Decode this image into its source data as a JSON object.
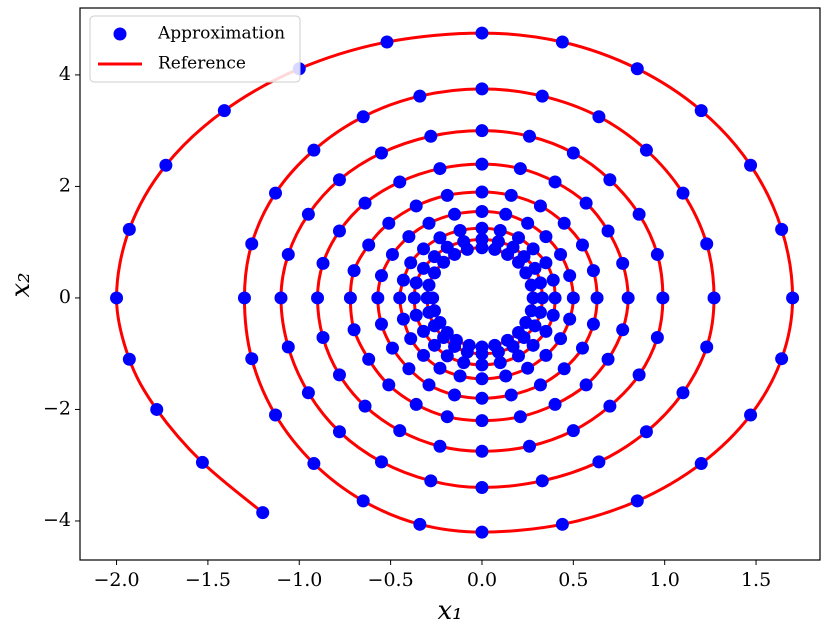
{
  "chart_data": {
    "type": "scatter",
    "x_label": "x₁",
    "y_label": "x₂",
    "xlim": [
      -2.2,
      1.85
    ],
    "ylim": [
      -4.7,
      5.2
    ],
    "xticks": [
      {
        "value": -2.0,
        "label": "−2.0"
      },
      {
        "value": -1.5,
        "label": "−1.5"
      },
      {
        "value": -1.0,
        "label": "−1.0"
      },
      {
        "value": -0.5,
        "label": "−0.5"
      },
      {
        "value": 0,
        "label": "0.0"
      },
      0.5,
      {
        "value": 1.0,
        "label": "1.0"
      },
      1.5
    ],
    "yticks": [
      {
        "value": -4,
        "label": "−4"
      },
      {
        "value": -2,
        "label": "−2"
      },
      0,
      2,
      4
    ],
    "grid": false,
    "legend": "upper left",
    "series": [
      {
        "name": "Approximation",
        "color": "#0000ff",
        "mode": "markers",
        "x": [
          -1.2,
          -1.53,
          -1.78,
          -1.93,
          -2.0,
          -1.93,
          -1.73,
          -1.41,
          -1.0,
          -0.52,
          0,
          0.44,
          0.85,
          1.2,
          1.47,
          1.64,
          1.7,
          1.64,
          1.47,
          1.2,
          0.85,
          0.44,
          0,
          -0.34,
          -0.65,
          -0.92,
          -1.13,
          -1.26,
          -1.3,
          -1.26,
          -1.13,
          -0.92,
          -0.65,
          -0.34,
          0,
          0.33,
          0.64,
          0.9,
          1.1,
          1.23,
          1.27,
          1.23,
          1.1,
          0.9,
          0.64,
          0.33,
          0,
          -0.28,
          -0.55,
          -0.78,
          -0.95,
          -1.06,
          -1.1,
          -1.06,
          -0.95,
          -0.78,
          -0.55,
          -0.28,
          0,
          0.26,
          0.5,
          0.7,
          0.86,
          0.96,
          0.99,
          0.96,
          0.86,
          0.7,
          0.5,
          0.26,
          0,
          -0.23,
          -0.45,
          -0.64,
          -0.78,
          -0.87,
          -0.9,
          -0.87,
          -0.78,
          -0.64,
          -0.45,
          -0.23,
          0,
          0.21,
          0.4,
          0.57,
          0.69,
          0.77,
          0.8,
          0.77,
          0.69,
          0.57,
          0.4,
          0.21,
          0,
          -0.19,
          -0.36,
          -0.51,
          -0.62,
          -0.7,
          -0.72,
          -0.7,
          -0.62,
          -0.51,
          -0.36,
          -0.19,
          0,
          0.16,
          0.32,
          0.45,
          0.55,
          0.61,
          0.63,
          0.61,
          0.55,
          0.45,
          0.32,
          0.16,
          0,
          -0.15,
          -0.29,
          -0.4,
          -0.49,
          -0.55,
          -0.57,
          -0.55,
          -0.49,
          -0.4,
          -0.29,
          -0.15,
          0,
          0.13,
          0.25,
          0.35,
          0.43,
          0.48,
          0.5,
          0.48,
          0.43,
          0.35,
          0.25,
          0.13,
          0,
          -0.12,
          -0.23,
          -0.32,
          -0.39,
          -0.43,
          -0.45,
          -0.43,
          -0.39,
          -0.32,
          -0.23,
          -0.12,
          0,
          0.1,
          0.2,
          0.28,
          0.35,
          0.39,
          0.4,
          0.39,
          0.35,
          0.28,
          0.2,
          0.1,
          0,
          -0.1,
          -0.19,
          -0.26,
          -0.32,
          -0.36,
          -0.37,
          -0.36,
          -0.32,
          -0.26,
          -0.19,
          -0.1,
          0,
          0.09,
          0.17,
          0.23,
          0.29,
          0.32,
          0.33,
          0.32,
          0.29,
          0.23,
          0.17,
          0.09,
          0,
          -0.08,
          -0.15,
          -0.21,
          -0.26,
          -0.29,
          -0.3,
          -0.29,
          -0.26,
          -0.21,
          -0.15,
          -0.08,
          0,
          0.07,
          0.14,
          0.2,
          0.24,
          0.27,
          0.28,
          0.27,
          0.24,
          0.2,
          0.14,
          0.07,
          0,
          -0.07,
          -0.14,
          -0.19,
          -0.23,
          -0.26,
          -0.27
        ],
        "y": [
          -3.85,
          -2.95,
          -2.0,
          -1.1,
          0,
          1.23,
          2.38,
          3.36,
          4.11,
          4.59,
          4.75,
          4.59,
          4.11,
          3.36,
          2.38,
          1.23,
          0,
          -1.09,
          -2.1,
          -2.97,
          -3.64,
          -4.06,
          -4.2,
          -4.06,
          -3.64,
          -2.97,
          -2.1,
          -1.09,
          0,
          0.97,
          1.88,
          2.65,
          3.25,
          3.62,
          3.75,
          3.62,
          3.25,
          2.65,
          1.88,
          0.97,
          0,
          -0.88,
          -1.7,
          -2.4,
          -2.94,
          -3.28,
          -3.4,
          -3.28,
          -2.94,
          -2.4,
          -1.7,
          -0.88,
          0,
          0.78,
          1.5,
          2.12,
          2.6,
          2.9,
          3,
          2.9,
          2.6,
          2.12,
          1.5,
          0.78,
          0,
          -0.71,
          -1.38,
          -1.94,
          -2.38,
          -2.66,
          -2.75,
          -2.66,
          -2.38,
          -1.94,
          -1.38,
          -0.71,
          0,
          0.62,
          1.2,
          1.7,
          2.08,
          2.32,
          2.4,
          2.32,
          2.08,
          1.7,
          1.2,
          0.62,
          0,
          -0.57,
          -1.1,
          -1.56,
          -1.91,
          -2.13,
          -2.2,
          -2.13,
          -1.91,
          -1.56,
          -1.1,
          -0.57,
          0,
          0.49,
          0.95,
          1.34,
          1.65,
          1.84,
          1.9,
          1.84,
          1.65,
          1.34,
          0.95,
          0.49,
          0,
          -0.47,
          -0.9,
          -1.27,
          -1.56,
          -1.74,
          -1.8,
          -1.74,
          -1.56,
          -1.27,
          -0.9,
          -0.47,
          0,
          0.4,
          0.78,
          1.1,
          1.34,
          1.5,
          1.55,
          1.5,
          1.34,
          1.1,
          0.78,
          0.4,
          0,
          -0.38,
          -0.73,
          -1.03,
          -1.26,
          -1.4,
          -1.45,
          -1.4,
          -1.26,
          -1.03,
          -0.73,
          -0.38,
          0,
          0.32,
          0.63,
          0.88,
          1.08,
          1.21,
          1.25,
          1.21,
          1.08,
          0.88,
          0.63,
          0.32,
          0,
          -0.31,
          -0.6,
          -0.85,
          -1.04,
          -1.16,
          -1.2,
          -1.16,
          -1.04,
          -0.85,
          -0.6,
          -0.31,
          0,
          0.27,
          0.53,
          0.74,
          0.91,
          1.01,
          1.05,
          1.01,
          0.91,
          0.74,
          0.53,
          0.27,
          0,
          -0.26,
          -0.5,
          -0.71,
          -0.87,
          -0.97,
          -1,
          -0.97,
          -0.87,
          -0.71,
          -0.5,
          -0.26,
          0,
          0.23,
          0.45,
          0.64,
          0.78,
          0.87,
          0.9,
          0.87,
          0.78,
          0.64,
          0.45,
          0.23,
          0,
          -0.23,
          -0.44,
          -0.62,
          -0.76,
          -0.85,
          -0.88,
          -0.85,
          -0.76,
          -0.62,
          -0.44,
          -0.23,
          0
        ]
      },
      {
        "name": "Reference",
        "color": "#ff0000",
        "mode": "lines",
        "x": [
          -1.2,
          -1.53,
          -1.78,
          -1.93,
          -2.0,
          -1.93,
          -1.73,
          -1.41,
          -1.0,
          -0.52,
          0,
          0.44,
          0.85,
          1.2,
          1.47,
          1.64,
          1.7,
          1.64,
          1.47,
          1.2,
          0.85,
          0.44,
          0,
          -0.34,
          -0.65,
          -0.92,
          -1.13,
          -1.26,
          -1.3,
          -1.26,
          -1.13,
          -0.92,
          -0.65,
          -0.34,
          0,
          0.33,
          0.64,
          0.9,
          1.1,
          1.23,
          1.27,
          1.23,
          1.1,
          0.9,
          0.64,
          0.33,
          0,
          -0.28,
          -0.55,
          -0.78,
          -0.95,
          -1.06,
          -1.1,
          -1.06,
          -0.95,
          -0.78,
          -0.55,
          -0.28,
          0,
          0.26,
          0.5,
          0.7,
          0.86,
          0.96,
          0.99,
          0.96,
          0.86,
          0.7,
          0.5,
          0.26,
          0,
          -0.23,
          -0.45,
          -0.64,
          -0.78,
          -0.87,
          -0.9,
          -0.87,
          -0.78,
          -0.64,
          -0.45,
          -0.23,
          0,
          0.21,
          0.4,
          0.57,
          0.69,
          0.77,
          0.8,
          0.77,
          0.69,
          0.57,
          0.4,
          0.21,
          0,
          -0.19,
          -0.36,
          -0.51,
          -0.62,
          -0.7,
          -0.72,
          -0.7,
          -0.62,
          -0.51,
          -0.36,
          -0.19,
          0,
          0.16,
          0.32,
          0.45,
          0.55,
          0.61,
          0.63,
          0.61,
          0.55,
          0.45,
          0.32,
          0.16,
          0,
          -0.15,
          -0.29,
          -0.4,
          -0.49,
          -0.55,
          -0.57,
          -0.55,
          -0.49,
          -0.4,
          -0.29,
          -0.15,
          0,
          0.13,
          0.25,
          0.35,
          0.43,
          0.48,
          0.5,
          0.48,
          0.43,
          0.35,
          0.25,
          0.13,
          0,
          -0.12,
          -0.23,
          -0.32,
          -0.39,
          -0.43,
          -0.45,
          -0.43,
          -0.39,
          -0.32,
          -0.23,
          -0.12,
          0,
          0.1,
          0.2,
          0.28,
          0.35,
          0.39,
          0.4,
          0.39,
          0.35,
          0.28,
          0.2,
          0.1,
          0,
          -0.1,
          -0.19,
          -0.26,
          -0.32,
          -0.36,
          -0.37,
          -0.36,
          -0.32,
          -0.26,
          -0.19,
          -0.1,
          0,
          0.09,
          0.17,
          0.23,
          0.29,
          0.32,
          0.33,
          0.32,
          0.29,
          0.23,
          0.17,
          0.09,
          0,
          -0.08,
          -0.15,
          -0.21,
          -0.26,
          -0.29,
          -0.3,
          -0.29,
          -0.26,
          -0.21,
          -0.15,
          -0.08,
          0,
          0.07,
          0.14,
          0.2,
          0.24,
          0.27,
          0.28,
          0.27,
          0.24,
          0.2,
          0.14,
          0.07,
          0,
          -0.07,
          -0.14,
          -0.19,
          -0.23,
          -0.26,
          -0.27
        ],
        "y": [
          -3.85,
          -2.95,
          -2.0,
          -1.1,
          0,
          1.23,
          2.38,
          3.36,
          4.11,
          4.59,
          4.75,
          4.59,
          4.11,
          3.36,
          2.38,
          1.23,
          0,
          -1.09,
          -2.1,
          -2.97,
          -3.64,
          -4.06,
          -4.2,
          -4.06,
          -3.64,
          -2.97,
          -2.1,
          -1.09,
          0,
          0.97,
          1.88,
          2.65,
          3.25,
          3.62,
          3.75,
          3.62,
          3.25,
          2.65,
          1.88,
          0.97,
          0,
          -0.88,
          -1.7,
          -2.4,
          -2.94,
          -3.28,
          -3.4,
          -3.28,
          -2.94,
          -2.4,
          -1.7,
          -0.88,
          0,
          0.78,
          1.5,
          2.12,
          2.6,
          2.9,
          3,
          2.9,
          2.6,
          2.12,
          1.5,
          0.78,
          0,
          -0.71,
          -1.38,
          -1.94,
          -2.38,
          -2.66,
          -2.75,
          -2.66,
          -2.38,
          -1.94,
          -1.38,
          -0.71,
          0,
          0.62,
          1.2,
          1.7,
          2.08,
          2.32,
          2.4,
          2.32,
          2.08,
          1.7,
          1.2,
          0.62,
          0,
          -0.57,
          -1.1,
          -1.56,
          -1.91,
          -2.13,
          -2.2,
          -2.13,
          -1.91,
          -1.56,
          -1.1,
          -0.57,
          0,
          0.49,
          0.95,
          1.34,
          1.65,
          1.84,
          1.9,
          1.84,
          1.65,
          1.34,
          0.95,
          0.49,
          0,
          -0.47,
          -0.9,
          -1.27,
          -1.56,
          -1.74,
          -1.8,
          -1.74,
          -1.56,
          -1.27,
          -0.9,
          -0.47,
          0,
          0.4,
          0.78,
          1.1,
          1.34,
          1.5,
          1.55,
          1.5,
          1.34,
          1.1,
          0.78,
          0.4,
          0,
          -0.38,
          -0.73,
          -1.03,
          -1.26,
          -1.4,
          -1.45,
          -1.4,
          -1.26,
          -1.03,
          -0.73,
          -0.38,
          0,
          0.32,
          0.63,
          0.88,
          1.08,
          1.21,
          1.25,
          1.21,
          1.08,
          0.88,
          0.63,
          0.32,
          0,
          -0.31,
          -0.6,
          -0.85,
          -1.04,
          -1.16,
          -1.2,
          -1.16,
          -1.04,
          -0.85,
          -0.6,
          -0.31,
          0,
          0.27,
          0.53,
          0.74,
          0.91,
          1.01,
          1.05,
          1.01,
          0.91,
          0.74,
          0.53,
          0.27,
          0,
          -0.26,
          -0.5,
          -0.71,
          -0.87,
          -0.97,
          -1,
          -0.97,
          -0.87,
          -0.71,
          -0.5,
          -0.26,
          0,
          0.23,
          0.45,
          0.64,
          0.78,
          0.87,
          0.9,
          0.87,
          0.78,
          0.64,
          0.45,
          0.23,
          0,
          -0.23,
          -0.44,
          -0.62,
          -0.76,
          -0.85,
          -0.88,
          -0.85,
          -0.76,
          -0.62,
          -0.44,
          -0.23,
          0
        ]
      }
    ]
  }
}
